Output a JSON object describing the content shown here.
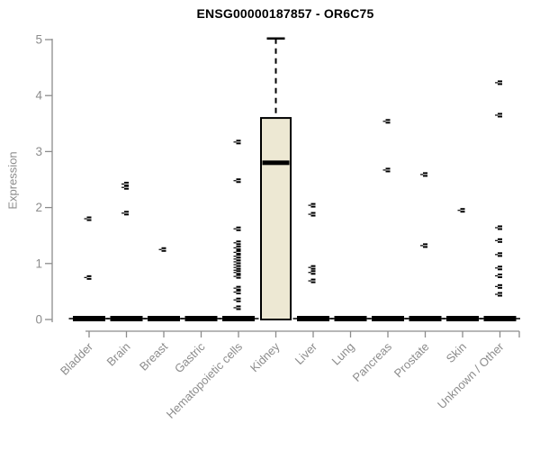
{
  "page": {
    "background": "#ffffff"
  },
  "header": {
    "title": "ENSG00000187857 - OR6C75"
  },
  "chart_data": {
    "type": "boxplot",
    "title": "ENSG00000187857 - OR6C75",
    "xlabel": "",
    "ylabel": "Expression",
    "ylim": [
      0,
      5
    ],
    "yticks": [
      0,
      1,
      2,
      3,
      4,
      5
    ],
    "grid": false,
    "legend": "none",
    "categories": [
      "Bladder",
      "Brain",
      "Breast",
      "Gastric",
      "Hematopoietic cells",
      "Kidney",
      "Liver",
      "Lung",
      "Pancreas",
      "Prostate",
      "Skin",
      "Unknown / Other"
    ],
    "series": [
      {
        "name": "Bladder",
        "q1": 0,
        "median": 0,
        "q3": 0,
        "whisker_low": 0,
        "whisker_high": 0,
        "outliers": [
          1.8,
          0.75
        ]
      },
      {
        "name": "Brain",
        "q1": 0,
        "median": 0,
        "q3": 0,
        "whisker_low": 0,
        "whisker_high": 0,
        "outliers": [
          2.42,
          2.36,
          1.9
        ]
      },
      {
        "name": "Breast",
        "q1": 0,
        "median": 0,
        "q3": 0,
        "whisker_low": 0,
        "whisker_high": 0,
        "outliers": [
          1.25
        ]
      },
      {
        "name": "Gastric",
        "q1": 0,
        "median": 0,
        "q3": 0,
        "whisker_low": 0,
        "whisker_high": 0,
        "outliers": []
      },
      {
        "name": "Hematopoietic cells",
        "q1": 0,
        "median": 0,
        "q3": 0,
        "whisker_low": 0,
        "whisker_high": 0,
        "outliers": [
          3.17,
          2.48,
          1.62,
          1.37,
          1.28,
          1.2,
          1.13,
          1.08,
          1.03,
          0.98,
          0.93,
          0.88,
          0.84,
          0.77,
          0.56,
          0.49,
          0.35,
          0.21
        ]
      },
      {
        "name": "Kidney",
        "q1": 0,
        "median": 2.8,
        "q3": 3.6,
        "whisker_low": 0,
        "whisker_high": 5.02,
        "outliers": []
      },
      {
        "name": "Liver",
        "q1": 0,
        "median": 0,
        "q3": 0,
        "whisker_low": 0,
        "whisker_high": 0,
        "outliers": [
          2.04,
          1.88,
          0.93,
          0.84,
          0.69
        ]
      },
      {
        "name": "Lung",
        "q1": 0,
        "median": 0,
        "q3": 0,
        "whisker_low": 0,
        "whisker_high": 0,
        "outliers": []
      },
      {
        "name": "Pancreas",
        "q1": 0,
        "median": 0,
        "q3": 0,
        "whisker_low": 0,
        "whisker_high": 0,
        "outliers": [
          3.54,
          2.67
        ]
      },
      {
        "name": "Prostate",
        "q1": 0,
        "median": 0,
        "q3": 0,
        "whisker_low": 0,
        "whisker_high": 0,
        "outliers": [
          2.59,
          1.32
        ]
      },
      {
        "name": "Skin",
        "q1": 0,
        "median": 0,
        "q3": 0,
        "whisker_low": 0,
        "whisker_high": 0,
        "outliers": [
          1.95
        ]
      },
      {
        "name": "Unknown / Other",
        "q1": 0,
        "median": 0,
        "q3": 0,
        "whisker_low": 0,
        "whisker_high": 0,
        "outliers": [
          4.23,
          3.65,
          1.64,
          1.41,
          1.16,
          0.92,
          0.78,
          0.59,
          0.45
        ]
      }
    ]
  },
  "colors": {
    "box_fill": "#ede8d3",
    "box_stroke": "#000000",
    "median": "#000000",
    "marker": "#000000",
    "axis": "#8c8c8c",
    "tick_label": "#8c8c8c",
    "title": "#000000",
    "background": "#ffffff"
  }
}
